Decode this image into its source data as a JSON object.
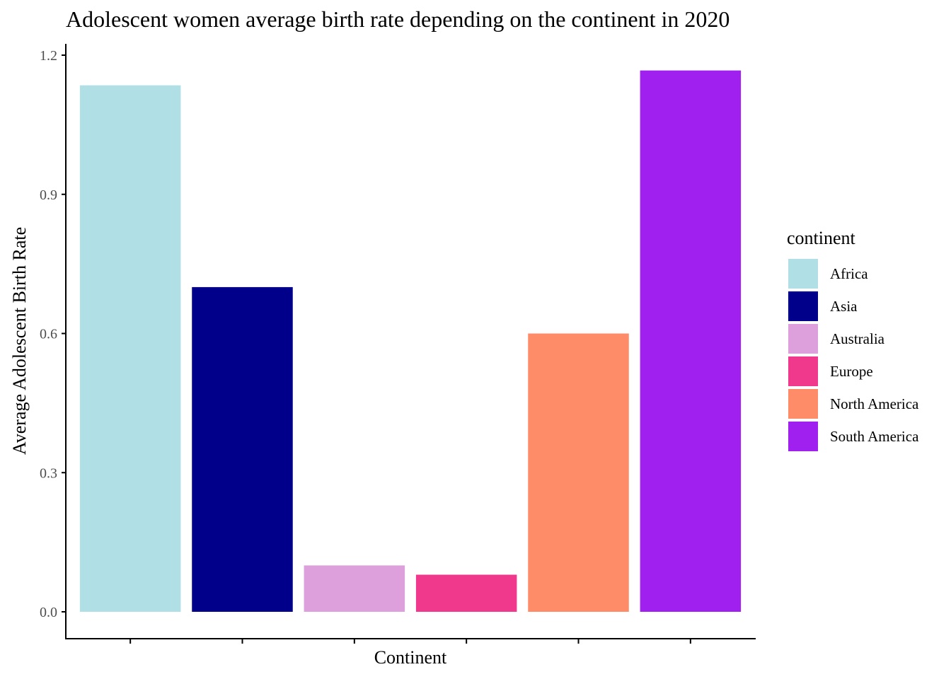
{
  "chart_data": {
    "type": "bar",
    "title": "Adolescent women average birth rate depending on the continent in 2020",
    "xlabel": "Continent",
    "ylabel": "Average Adolescent Birth Rate",
    "categories": [
      "Africa",
      "Asia",
      "Australia",
      "Europe",
      "North America",
      "South America"
    ],
    "values": [
      1.135,
      0.7,
      0.1,
      0.08,
      0.6,
      1.167
    ],
    "colors": [
      "#b0dfe5",
      "#00008b",
      "#dda0dd",
      "#f0398c",
      "#ff8c69",
      "#a020f0"
    ],
    "ylim": [
      0,
      1.2
    ],
    "yticks": [
      "0.0",
      "0.3",
      "0.6",
      "0.9",
      "1.2"
    ],
    "grid": false,
    "legend": {
      "title": "continent",
      "placement": "right"
    }
  }
}
